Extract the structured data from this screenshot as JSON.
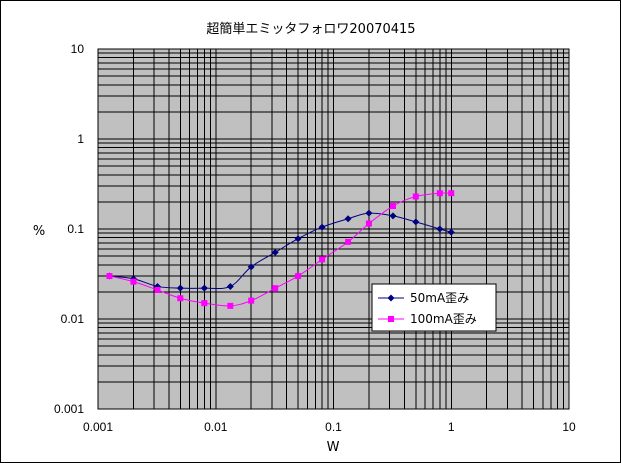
{
  "chart_data": {
    "type": "line",
    "title": "超簡単エミッタフォロワ20070415",
    "xlabel": "W",
    "ylabel": "%",
    "x_scale": "log",
    "y_scale": "log",
    "xlim": [
      0.001,
      10
    ],
    "ylim": [
      0.001,
      10
    ],
    "x_ticks": [
      "0.001",
      "0.01",
      "0.1",
      "1",
      "10"
    ],
    "y_ticks": [
      "0.001",
      "0.01",
      "0.1",
      "1",
      "10"
    ],
    "grid": true,
    "plot_background": "#c0c0c0",
    "legend_position": "right",
    "series": [
      {
        "name": "50mA歪み",
        "color": "#000080",
        "marker": "diamond",
        "x": [
          0.00125,
          0.002,
          0.0032,
          0.005,
          0.008,
          0.0133,
          0.02,
          0.032,
          0.05,
          0.08,
          0.133,
          0.2,
          0.32,
          0.5,
          0.8,
          1.0
        ],
        "y": [
          0.03,
          0.028,
          0.023,
          0.022,
          0.022,
          0.023,
          0.038,
          0.055,
          0.078,
          0.105,
          0.13,
          0.15,
          0.14,
          0.12,
          0.1,
          0.092
        ]
      },
      {
        "name": "100mA歪み",
        "color": "#ff00ff",
        "marker": "square",
        "x": [
          0.00125,
          0.002,
          0.0032,
          0.005,
          0.008,
          0.0133,
          0.02,
          0.032,
          0.05,
          0.08,
          0.133,
          0.2,
          0.32,
          0.5,
          0.8,
          1.0
        ],
        "y": [
          0.03,
          0.026,
          0.021,
          0.017,
          0.015,
          0.014,
          0.016,
          0.022,
          0.03,
          0.046,
          0.072,
          0.115,
          0.18,
          0.23,
          0.25,
          0.25
        ]
      }
    ]
  }
}
